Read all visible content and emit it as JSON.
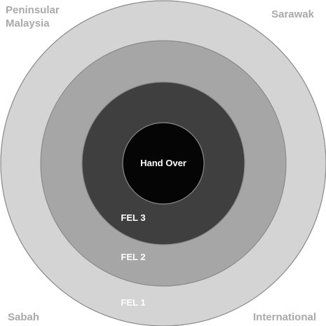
{
  "regions": {
    "top_left_line1": "Peninsular",
    "top_left_line2": "Malaysia",
    "top_right": "Sarawak",
    "bottom_left": "Sabah",
    "bottom_right": "International"
  },
  "rings": [
    {
      "label": "FEL 1",
      "color": "#d4d4d4"
    },
    {
      "label": "FEL 2",
      "color": "#a6a6a6"
    },
    {
      "label": "FEL 3",
      "color": "#3f3f3f"
    }
  ],
  "center": {
    "label": "Hand Over",
    "color": "#050505"
  }
}
